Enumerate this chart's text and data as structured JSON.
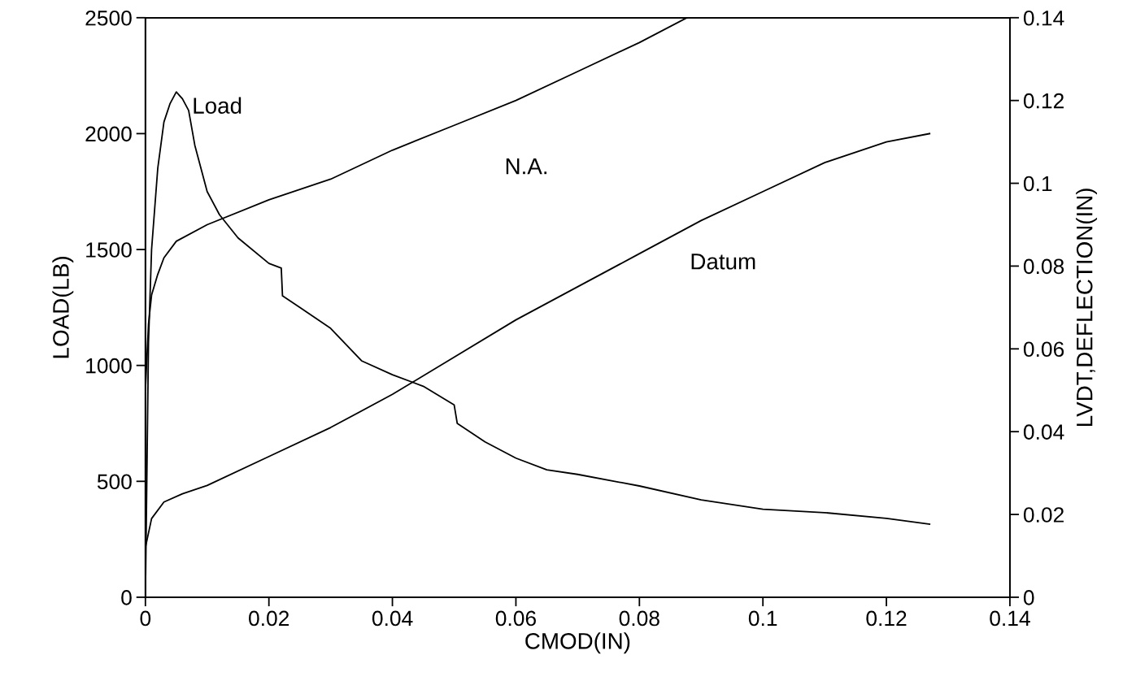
{
  "chart_data": {
    "type": "line",
    "xlabel": "CMOD(IN)",
    "ylabel": "LOAD(LB)",
    "y2label": "LVDT,DEFLECTION(IN)",
    "xlim": [
      0,
      0.14
    ],
    "xticks": [
      0,
      0.02,
      0.04,
      0.06,
      0.08,
      {
        "value": 0.1,
        "label": "0.1"
      },
      0.12,
      0.14
    ],
    "ylim": [
      0,
      2500
    ],
    "yticks": [
      0,
      500,
      1000,
      1500,
      2000,
      2500
    ],
    "y2lim": [
      0,
      0.14
    ],
    "y2ticks": [
      0,
      0.02,
      0.04,
      0.06,
      0.08,
      {
        "value": 0.1,
        "label": "0.1"
      },
      0.12,
      0.14
    ],
    "grid": false,
    "legend": false,
    "marker": "none",
    "line_style": "solid",
    "series": [
      {
        "name": "Load",
        "color": "#000000",
        "x": [
          0,
          0.0005,
          0.001,
          0.002,
          0.003,
          0.004,
          0.005,
          0.006,
          0.007,
          0.008,
          0.009,
          0.01,
          0.012,
          0.015,
          0.02,
          0.022,
          0.0222,
          0.025,
          0.03,
          0.035,
          0.04,
          0.045,
          0.05,
          0.0505,
          0.055,
          0.06,
          0.065,
          0.07,
          0.08,
          0.09,
          0.1,
          0.11,
          0.12,
          0.127
        ],
        "values": [
          0,
          1100,
          1500,
          1850,
          2050,
          2130,
          2180,
          2150,
          2100,
          1950,
          1850,
          1750,
          1650,
          1550,
          1440,
          1420,
          1300,
          1250,
          1160,
          1020,
          960,
          910,
          830,
          750,
          670,
          600,
          550,
          530,
          480,
          420,
          380,
          365,
          340,
          315
        ]
      },
      {
        "name": "N.A.",
        "color": "#000000",
        "axis": "y2",
        "x": [
          0,
          0.0005,
          0.001,
          0.002,
          0.003,
          0.005,
          0.01,
          0.02,
          0.03,
          0.04,
          0.05,
          0.06,
          0.07,
          0.08,
          0.0877
        ],
        "values": [
          0.05,
          0.066,
          0.073,
          0.078,
          0.082,
          0.086,
          0.09,
          0.096,
          0.101,
          0.108,
          0.114,
          0.12,
          0.127,
          0.134,
          0.14
        ]
      },
      {
        "name": "Datum",
        "color": "#000000",
        "axis": "y2",
        "x": [
          0,
          0.001,
          0.003,
          0.006,
          0.01,
          0.02,
          0.03,
          0.04,
          0.05,
          0.06,
          0.07,
          0.08,
          0.09,
          0.1,
          0.11,
          0.12,
          0.127
        ],
        "values": [
          0.012,
          0.019,
          0.023,
          0.025,
          0.027,
          0.034,
          0.041,
          0.049,
          0.058,
          0.067,
          0.075,
          0.083,
          0.091,
          0.098,
          0.105,
          0.11,
          0.112
        ]
      }
    ]
  }
}
